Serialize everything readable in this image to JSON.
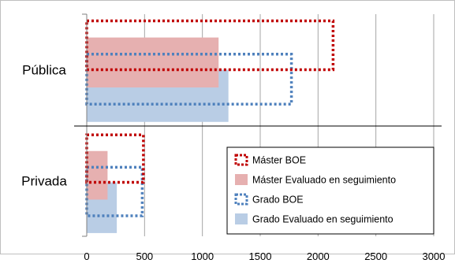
{
  "chart_data": {
    "type": "bar",
    "orientation": "horizontal",
    "categories": [
      "Pública",
      "Privada"
    ],
    "series": [
      {
        "name": "Máster BOE",
        "values": [
          2130,
          490
        ],
        "color": "#c00000",
        "style": "dotted-outline"
      },
      {
        "name": "Máster Evaluado en seguimiento",
        "values": [
          1140,
          180
        ],
        "color": "#e6b0b0",
        "style": "fill"
      },
      {
        "name": "Grado BOE",
        "values": [
          1770,
          480
        ],
        "color": "#4f81bd",
        "style": "dotted-outline"
      },
      {
        "name": "Grado Evaluado en seguimiento",
        "values": [
          1225,
          260
        ],
        "color": "#b9cde5",
        "style": "fill"
      }
    ],
    "x_ticks": [
      "0",
      "500",
      "1000",
      "1500",
      "2000",
      "2500",
      "3000"
    ],
    "xlim": [
      0,
      3000
    ],
    "grid": true,
    "legend_position": "inside-bottom-right",
    "title": "",
    "xlabel": "",
    "ylabel": ""
  }
}
